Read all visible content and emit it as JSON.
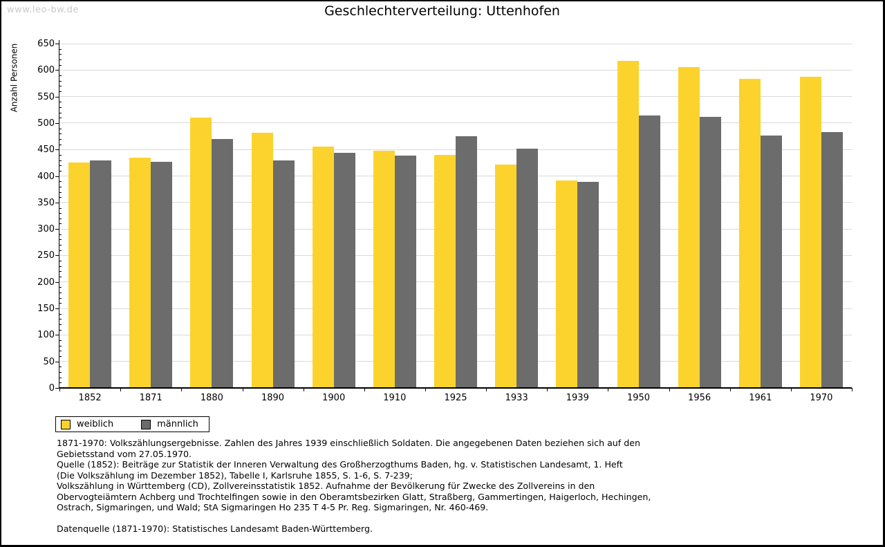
{
  "watermark": "www.leo-bw.de",
  "title": "Geschlechterverteilung: Uttenhofen",
  "chart_data": {
    "type": "bar",
    "title": "Geschlechterverteilung: Uttenhofen",
    "xlabel": "",
    "ylabel": "Anzahl Personen",
    "ylim": [
      0,
      650
    ],
    "ytick_step": 50,
    "ytick_minor_step": 10,
    "grid": true,
    "legend_position": "bottom-left",
    "categories": [
      "1852",
      "1871",
      "1880",
      "1890",
      "1900",
      "1910",
      "1925",
      "1933",
      "1939",
      "1950",
      "1956",
      "1961",
      "1970"
    ],
    "series": [
      {
        "name": "weiblich",
        "color": "#FCD32D",
        "values": [
          426,
          434,
          510,
          481,
          455,
          448,
          440,
          422,
          391,
          617,
          606,
          583,
          587
        ]
      },
      {
        "name": "männlich",
        "color": "#6C6C6C",
        "values": [
          430,
          427,
          470,
          430,
          444,
          438,
          475,
          452,
          389,
          514,
          512,
          476,
          483
        ]
      }
    ]
  },
  "legend": {
    "items": [
      {
        "label": "weiblich",
        "color": "#FCD32D"
      },
      {
        "label": "männlich",
        "color": "#6C6C6C"
      }
    ]
  },
  "colors": {
    "weiblich": "#FCD32D",
    "maennlich": "#6C6C6C",
    "gridline": "#d9d9d9",
    "watermark": "#c9c9c9"
  },
  "footnotes": {
    "lines": [
      "1871-1970: Volkszählungsergebnisse. Zahlen des Jahres 1939 einschließlich Soldaten. Die angegebenen Daten beziehen sich auf den",
      "Gebietsstand vom 27.05.1970.",
      "Quelle (1852): Beiträge zur Statistik der Inneren Verwaltung des Großherzogthums Baden, hg. v. Statistischen Landesamt, 1. Heft",
      "(Die Volkszählung im Dezember 1852), Tabelle I, Karlsruhe 1855, S. 1-6, S. 7-239;",
      "Volkszählung in Württemberg (CD), Zollvereinsstatistik 1852. Aufnahme der Bevölkerung für Zwecke des Zollvereins in den",
      "Obervogteiämtern Achberg und Trochtelfingen sowie in den Oberamtsbezirken Glatt, Straßberg, Gammertingen, Haigerloch, Hechingen,",
      "Ostrach, Sigmaringen, und Wald; StA Sigmaringen Ho 235 T 4-5 Pr. Reg. Sigmaringen, Nr. 460-469."
    ],
    "datasource": "Datenquelle (1871-1970): Statistisches Landesamt Baden-Württemberg."
  }
}
